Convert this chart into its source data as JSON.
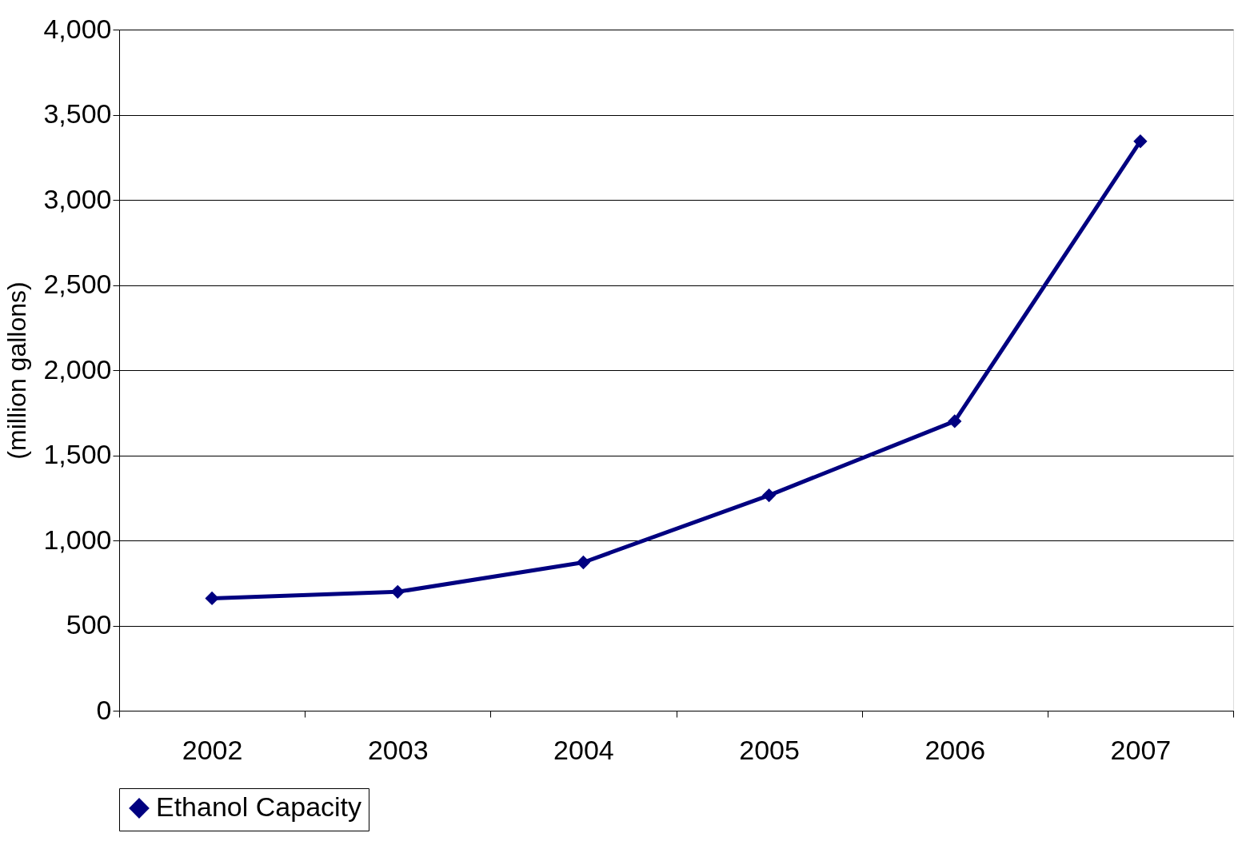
{
  "chart_data": {
    "type": "line",
    "ylabel": "(million gallons)",
    "categories": [
      "2002",
      "2003",
      "2004",
      "2005",
      "2006",
      "2007"
    ],
    "series": [
      {
        "name": "Ethanol Capacity",
        "color": "#000080",
        "values": [
          660,
          698,
          871,
          1265,
          1700,
          3344
        ]
      }
    ],
    "ylim": [
      0,
      4000
    ],
    "yticks": [
      0,
      500,
      {
        "value": 1000,
        "label": "1,000"
      },
      {
        "value": 1500,
        "label": "1,500"
      },
      {
        "value": 2000,
        "label": "2,000"
      },
      {
        "value": 2500,
        "label": "2,500"
      },
      {
        "value": 3000,
        "label": "3,000"
      },
      {
        "value": 3500,
        "label": "3,500"
      },
      {
        "value": 4000,
        "label": "4,000"
      }
    ],
    "grid": "y",
    "legend": "bottom",
    "marker": "diamond",
    "line_style": "solid"
  }
}
